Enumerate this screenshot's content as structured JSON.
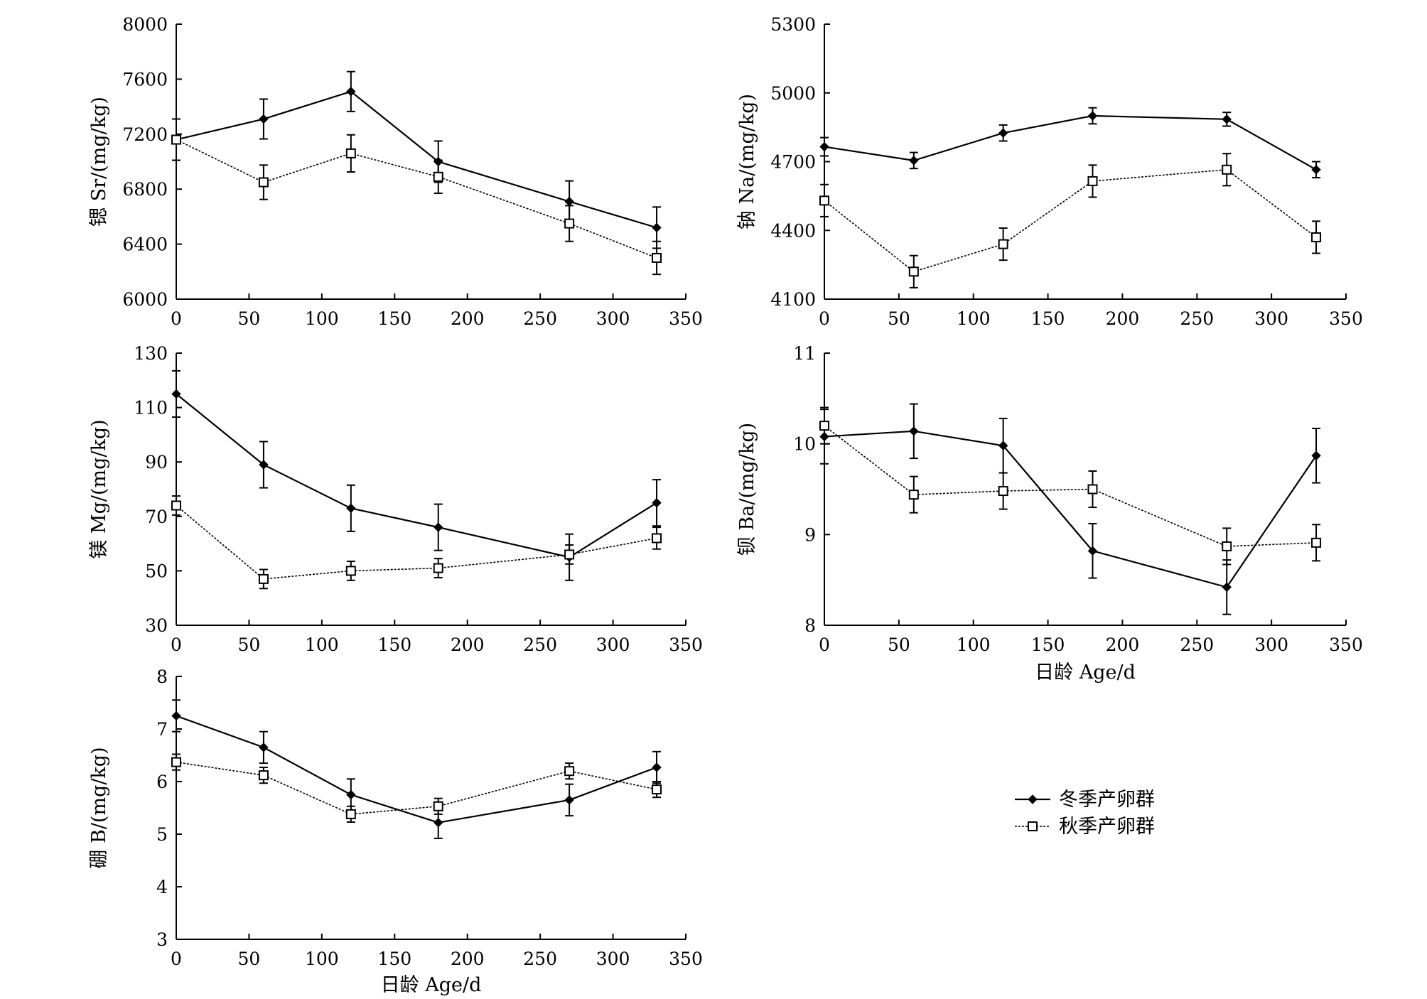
{
  "chart_data": [
    {
      "type": "line",
      "ylabel": "锶 Sr/(mg/kg)",
      "xlabel": "",
      "xlim": [
        0,
        350
      ],
      "xticks": [
        0,
        50,
        100,
        150,
        200,
        250,
        300,
        350
      ],
      "ylim": [
        6000,
        8000
      ],
      "yticks": [
        6000,
        6400,
        6800,
        7200,
        7600,
        8000
      ],
      "x": [
        0,
        60,
        120,
        180,
        270,
        330
      ],
      "series": [
        {
          "name": "冬季产卵群",
          "values": [
            7160,
            7310,
            7510,
            7000,
            6710,
            6520
          ],
          "errors": [
            150,
            145,
            145,
            150,
            150,
            150
          ]
        },
        {
          "name": "秋季产卵群",
          "values": [
            7160,
            6850,
            7060,
            6890,
            6550,
            6300
          ],
          "errors": [
            150,
            125,
            135,
            120,
            130,
            120
          ]
        }
      ]
    },
    {
      "type": "line",
      "ylabel": "钠 Na/(mg/kg)",
      "xlabel": "",
      "xlim": [
        0,
        350
      ],
      "xticks": [
        0,
        50,
        100,
        150,
        200,
        250,
        300,
        350
      ],
      "ylim": [
        4100,
        5300
      ],
      "yticks": [
        4100,
        4400,
        4700,
        5000,
        5300
      ],
      "x": [
        0,
        60,
        120,
        180,
        270,
        330
      ],
      "series": [
        {
          "name": "冬季产卵群",
          "values": [
            4765,
            4705,
            4825,
            4900,
            4885,
            4665
          ],
          "errors": [
            40,
            35,
            35,
            35,
            30,
            35
          ]
        },
        {
          "name": "秋季产卵群",
          "values": [
            4530,
            4220,
            4340,
            4615,
            4665,
            4370
          ],
          "errors": [
            70,
            70,
            70,
            70,
            70,
            70
          ]
        }
      ]
    },
    {
      "type": "line",
      "ylabel": "镁 Mg/(mg/kg)",
      "xlabel": "",
      "xlim": [
        0,
        350
      ],
      "xticks": [
        0,
        50,
        100,
        150,
        200,
        250,
        300,
        350
      ],
      "ylim": [
        30,
        130
      ],
      "yticks": [
        30,
        50,
        70,
        90,
        110,
        130
      ],
      "x": [
        0,
        60,
        120,
        180,
        270,
        330
      ],
      "series": [
        {
          "name": "冬季产卵群",
          "values": [
            115,
            89,
            73,
            66,
            55,
            75
          ],
          "errors": [
            8.5,
            8.5,
            8.5,
            8.5,
            8.5,
            8.5
          ]
        },
        {
          "name": "秋季产卵群",
          "values": [
            74,
            47,
            50,
            51,
            56,
            62
          ],
          "errors": [
            3.5,
            3.5,
            3.5,
            3.5,
            3.5,
            4
          ]
        }
      ]
    },
    {
      "type": "line",
      "ylabel": "钡 Ba/(mg/kg)",
      "xlabel": "日龄 Age/d",
      "xlim": [
        0,
        350
      ],
      "xticks": [
        0,
        50,
        100,
        150,
        200,
        250,
        300,
        350
      ],
      "ylim": [
        8,
        11
      ],
      "yticks": [
        8,
        9,
        10,
        11
      ],
      "x": [
        0,
        60,
        120,
        180,
        270,
        330
      ],
      "series": [
        {
          "name": "冬季产卵群",
          "values": [
            10.08,
            10.14,
            9.98,
            8.82,
            8.42,
            9.87
          ],
          "errors": [
            0.3,
            0.3,
            0.3,
            0.3,
            0.3,
            0.3
          ]
        },
        {
          "name": "秋季产卵群",
          "values": [
            10.2,
            9.44,
            9.48,
            9.5,
            8.87,
            8.91
          ],
          "errors": [
            0.2,
            0.2,
            0.2,
            0.2,
            0.2,
            0.2
          ]
        }
      ]
    },
    {
      "type": "line",
      "ylabel": "硼 B/(mg/kg)",
      "xlabel": "日龄 Age/d",
      "xlim": [
        0,
        350
      ],
      "xticks": [
        0,
        50,
        100,
        150,
        200,
        250,
        300,
        350
      ],
      "ylim": [
        3,
        8
      ],
      "yticks": [
        3,
        4,
        5,
        6,
        7,
        8
      ],
      "x": [
        0,
        60,
        120,
        180,
        270,
        330
      ],
      "series": [
        {
          "name": "冬季产卵群",
          "values": [
            7.25,
            6.65,
            5.75,
            5.22,
            5.65,
            6.27
          ],
          "errors": [
            0.3,
            0.3,
            0.3,
            0.3,
            0.3,
            0.3
          ]
        },
        {
          "name": "秋季产卵群",
          "values": [
            6.37,
            6.12,
            5.38,
            5.53,
            6.2,
            5.85
          ],
          "errors": [
            0.15,
            0.15,
            0.15,
            0.15,
            0.15,
            0.15
          ]
        }
      ]
    }
  ],
  "legend": {
    "items": [
      {
        "label": "冬季产卵群",
        "marker": "filled-diamond"
      },
      {
        "label": "秋季产卵群",
        "marker": "open-square"
      }
    ]
  }
}
